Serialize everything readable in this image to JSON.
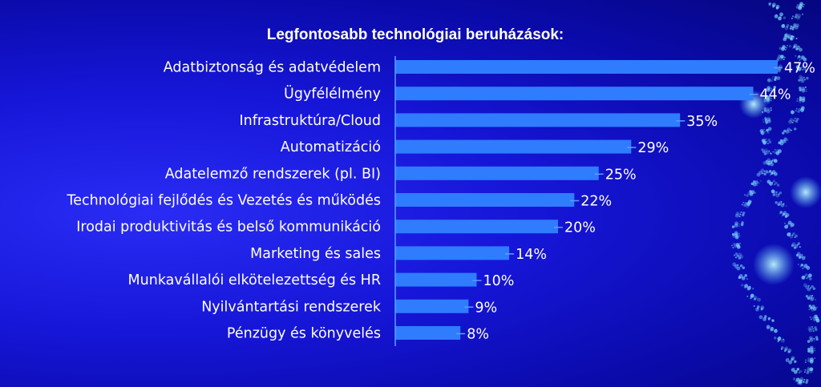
{
  "chart_data": {
    "type": "bar",
    "orientation": "horizontal",
    "title": "Legfontosabb technológiai beruházások:",
    "categories": [
      "Adatbiztonság és adatvédelem",
      "Ügyfélélmény",
      "Infrastruktúra/Cloud",
      "Automatizáció",
      "Adatelemző rendszerek (pl. BI)",
      "Technológiai fejlődés és Vezetés és működés",
      "Irodai produktivitás és belső kommunikáció",
      "Marketing és sales",
      "Munkavállalói elkötelezettség és HR",
      "Nyilvántartási rendszerek",
      "Pénzügy és könyvelés"
    ],
    "values": [
      47,
      44,
      35,
      29,
      25,
      22,
      20,
      14,
      10,
      9,
      8
    ],
    "value_labels": [
      "47%",
      "44%",
      "35%",
      "29%",
      "25%",
      "22%",
      "20%",
      "14%",
      "10%",
      "9%",
      "8%"
    ],
    "unit": "%",
    "xlim": [
      0,
      47
    ],
    "grid": false,
    "legend": "none",
    "colors": {
      "bar": "#2f7cff",
      "background": "#1414d0",
      "axis": "#5aa0ff",
      "text": "#ffffff",
      "glow": "#7fe0ff"
    }
  }
}
